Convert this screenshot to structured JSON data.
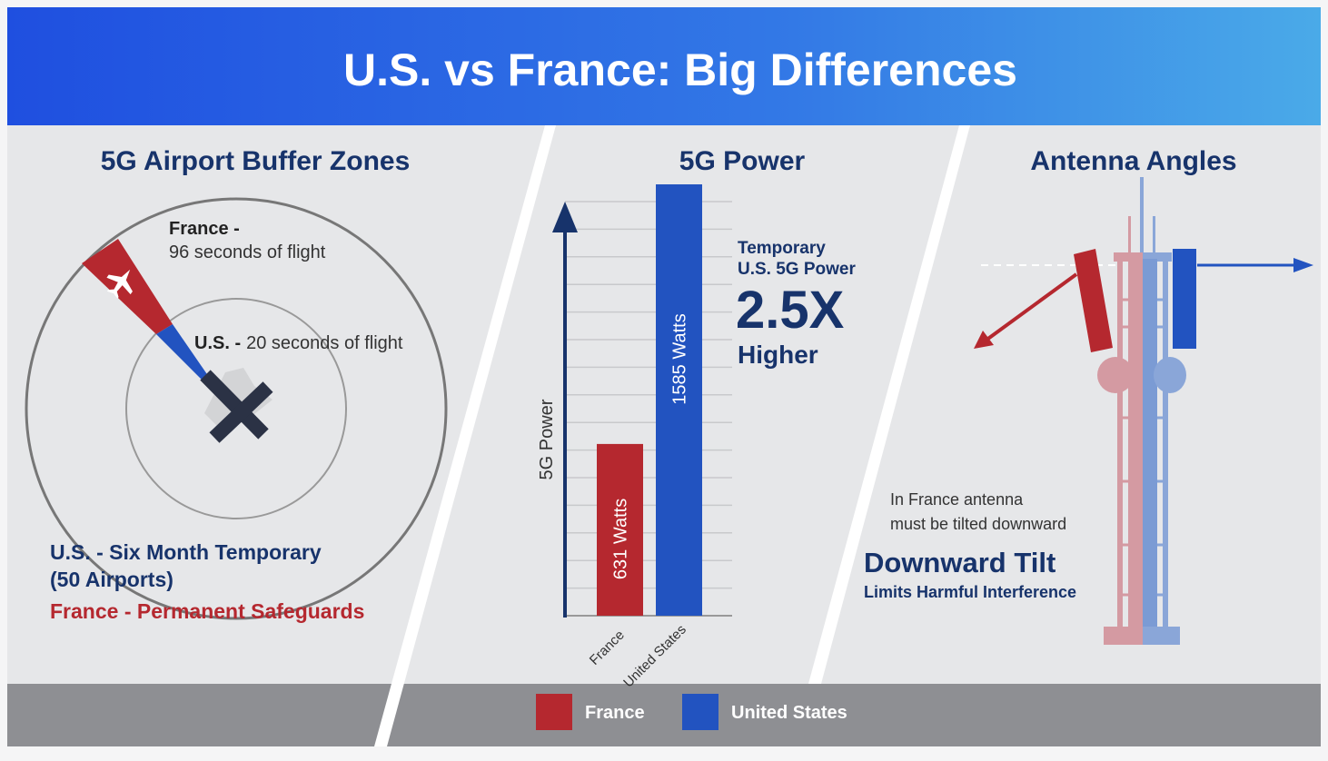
{
  "title": "U.S. vs France: Big Differences",
  "colors": {
    "france": "#b5282f",
    "us": "#2253c0",
    "navy": "#17336b",
    "header_start": "#2050e0",
    "header_end": "#4aa8e8",
    "panel": "#e6e7e9",
    "footer": "#8e8f93"
  },
  "buffer_zones": {
    "heading": "5G Airport Buffer Zones",
    "france_label_bold": "France -",
    "france_label": "96 seconds of flight",
    "us_label_bold": "U.S. -",
    "us_label": "20 seconds of flight",
    "us_note_line1": "U.S. - Six Month Temporary",
    "us_note_line2": "(50 Airports)",
    "france_note": "France - Permanent Safeguards",
    "icons": [
      "airplane-icon",
      "runway-icon"
    ]
  },
  "power": {
    "heading": "5G Power",
    "callout_line1": "Temporary",
    "callout_line2": "U.S. 5G Power",
    "callout_big": "2.5X",
    "callout_line3": "Higher"
  },
  "chart_data": {
    "type": "bar",
    "title": "5G Power",
    "xlabel": "",
    "ylabel": "5G Power",
    "categories": [
      "France",
      "United States"
    ],
    "values": [
      631,
      1585
    ],
    "value_labels": [
      "631 Watts",
      "1585 Watts"
    ],
    "unit": "Watts",
    "ylim": [
      0,
      1585
    ],
    "grid": true,
    "colors": [
      "#b5282f",
      "#2253c0"
    ]
  },
  "antenna": {
    "heading": "Antenna Angles",
    "note_line1": "In France antenna",
    "note_line2": "must be tilted downward",
    "tilt_title": "Downward Tilt",
    "tilt_sub": "Limits Harmful Interference",
    "icons": [
      "cell-tower-icon",
      "antenna-icon"
    ]
  },
  "legend": [
    {
      "label": "France",
      "color": "#b5282f"
    },
    {
      "label": "United States",
      "color": "#2253c0"
    }
  ]
}
